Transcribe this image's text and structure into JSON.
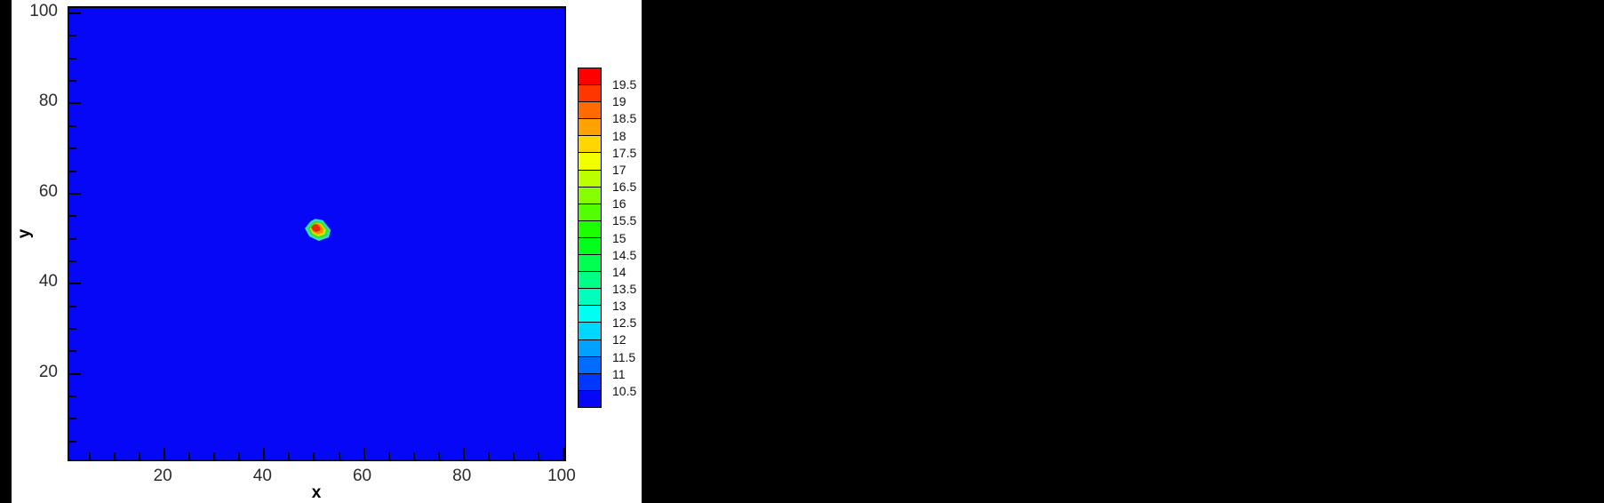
{
  "chart_data": {
    "type": "heatmap",
    "title": "",
    "axes": {
      "x": {
        "label": "x",
        "ticks": [
          20,
          40,
          60,
          80,
          100
        ],
        "minor_step": 5,
        "range": [
          0.9,
          100.9
        ]
      },
      "y": {
        "label": "y",
        "ticks": [
          20,
          40,
          60,
          80,
          100
        ],
        "minor_step": 5,
        "range": [
          0.2,
          101.2
        ]
      }
    },
    "colorbar": {
      "labels_top_to_bottom": [
        "19.5",
        "19",
        "18.5",
        "18",
        "17.5",
        "17",
        "16.5",
        "16",
        "15.5",
        "15",
        "14.5",
        "14",
        "13.5",
        "13",
        "12.5",
        "12",
        "11.5",
        "11",
        "10.5"
      ],
      "colors_top_to_bottom": [
        "#ff0000",
        "#ff3600",
        "#ff6b00",
        "#ffa100",
        "#ffd700",
        "#f2ff00",
        "#bcff00",
        "#86ff00",
        "#51ff00",
        "#1bff00",
        "#00ff1b",
        "#00ff51",
        "#00ff86",
        "#00ffbc",
        "#00fff2",
        "#00d7ff",
        "#00a1ff",
        "#006bff",
        "#0036ff",
        "#0707f8"
      ]
    },
    "field": {
      "background_color": "#0707f8",
      "description": "uniform field at lowest contour level with one localized peak",
      "hotspot": {
        "center": [
          51.2,
          51.7
        ],
        "outer_points": [
          [
            50.6,
            54.0
          ],
          [
            52.1,
            53.7
          ],
          [
            53.7,
            51.5
          ],
          [
            53.3,
            49.9
          ],
          [
            51.3,
            49.1
          ],
          [
            49.4,
            50.1
          ],
          [
            48.5,
            51.9
          ],
          [
            49.7,
            53.5
          ]
        ],
        "rings": [
          {
            "color": "#2fe0c0",
            "scale": 1.0
          },
          {
            "color": "#3edc2e",
            "scale": 0.8
          },
          {
            "color": "#c8ee00",
            "scale": 0.62
          },
          {
            "color": "#ff9000",
            "scale": 0.5,
            "center": [
              50.9,
              52.0
            ]
          },
          {
            "color": "#ea2b00",
            "scale": 0.36,
            "center": [
              50.5,
              52.2
            ]
          }
        ]
      }
    }
  }
}
